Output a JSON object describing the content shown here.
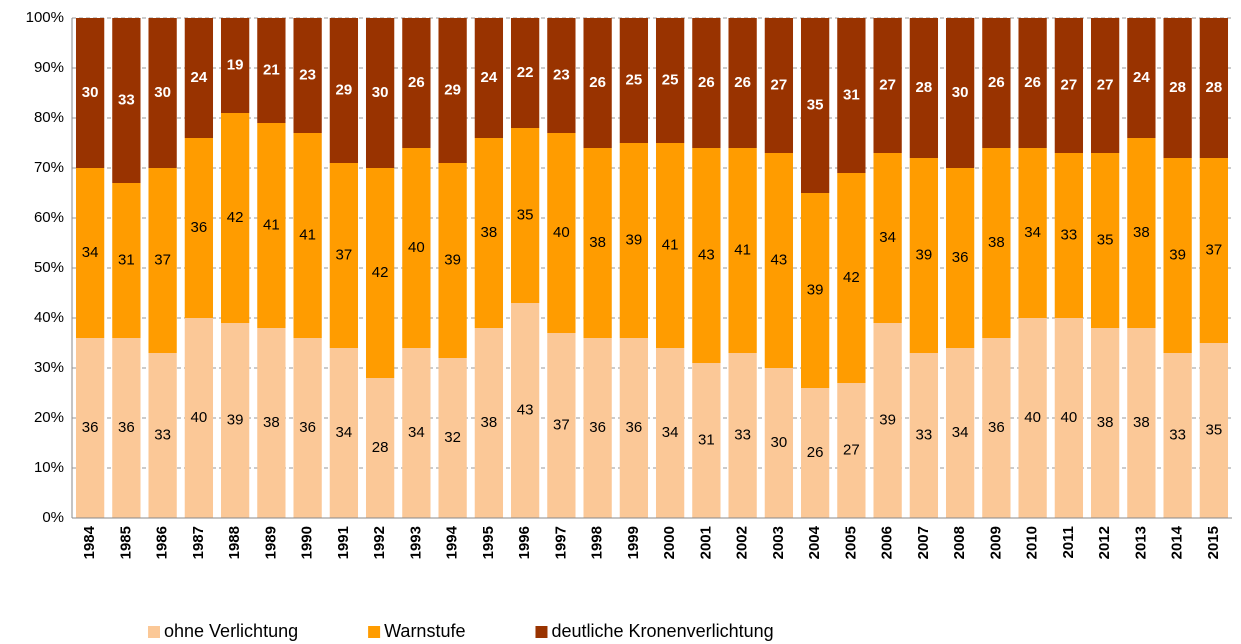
{
  "chart_data": {
    "type": "stacked-bar",
    "categories": [
      "1984",
      "1985",
      "1986",
      "1987",
      "1988",
      "1989",
      "1990",
      "1991",
      "1992",
      "1993",
      "1994",
      "1995",
      "1996",
      "1997",
      "1998",
      "1999",
      "2000",
      "2001",
      "2002",
      "2003",
      "2004",
      "2005",
      "2006",
      "2007",
      "2008",
      "2009",
      "2010",
      "2011",
      "2012",
      "2013",
      "2014",
      "2015"
    ],
    "series": [
      {
        "name": "ohne Verlichtung",
        "color": "#fbc897",
        "values": [
          36,
          36,
          33,
          40,
          39,
          38,
          36,
          34,
          28,
          34,
          32,
          38,
          43,
          37,
          36,
          36,
          34,
          31,
          33,
          30,
          26,
          27,
          39,
          33,
          34,
          36,
          40,
          40,
          38,
          38,
          33,
          35
        ]
      },
      {
        "name": "Warnstufe",
        "color": "#ff9c00",
        "values": [
          34,
          31,
          37,
          36,
          42,
          41,
          41,
          37,
          42,
          40,
          39,
          38,
          35,
          40,
          38,
          39,
          41,
          43,
          41,
          43,
          39,
          42,
          34,
          39,
          36,
          38,
          34,
          33,
          35,
          38,
          39,
          37
        ]
      },
      {
        "name": "deutliche Kronenverlichtung",
        "color": "#993300",
        "values": [
          30,
          33,
          30,
          24,
          19,
          21,
          23,
          29,
          30,
          26,
          29,
          24,
          22,
          23,
          26,
          25,
          25,
          26,
          26,
          27,
          35,
          31,
          27,
          28,
          30,
          26,
          26,
          27,
          27,
          24,
          28,
          28
        ]
      }
    ],
    "ylim": [
      0,
      100
    ],
    "yticks": [
      {
        "value": 0,
        "label": "0%"
      },
      {
        "value": 10,
        "label": "10%"
      },
      {
        "value": 20,
        "label": "20%"
      },
      {
        "value": 30,
        "label": "30%"
      },
      {
        "value": 40,
        "label": "40%"
      },
      {
        "value": 50,
        "label": "50%"
      },
      {
        "value": 60,
        "label": "60%"
      },
      {
        "value": 70,
        "label": "70%"
      },
      {
        "value": 80,
        "label": "80%"
      },
      {
        "value": 90,
        "label": "90%"
      },
      {
        "value": 100,
        "label": "100%"
      }
    ],
    "grid": true
  }
}
